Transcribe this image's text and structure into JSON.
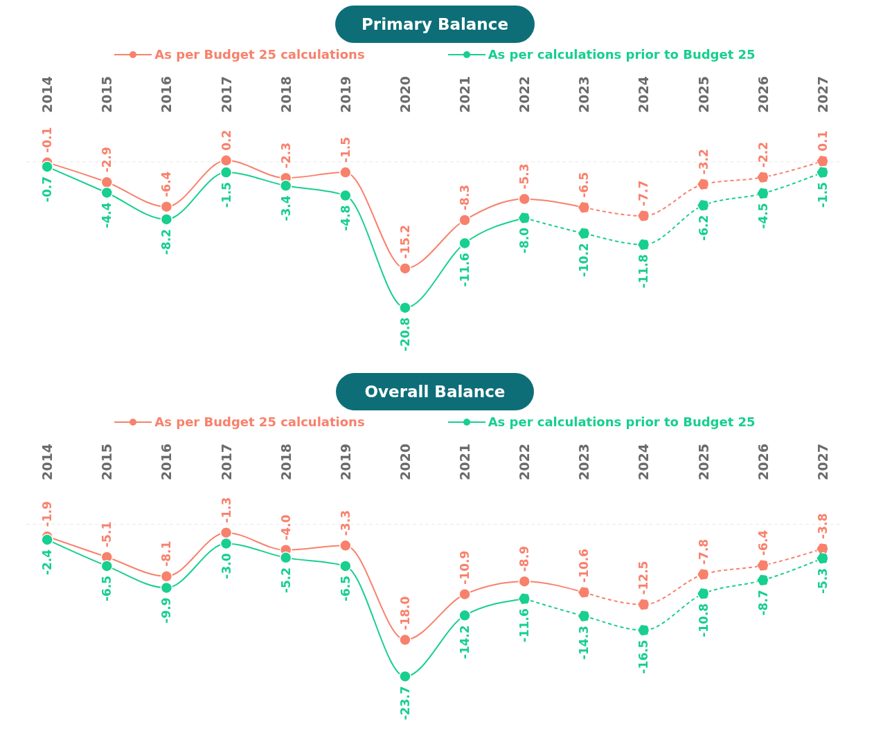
{
  "chart_data": [
    {
      "type": "line",
      "title": "Primary Balance",
      "categories": [
        "2014",
        "2015",
        "2016",
        "2017",
        "2018",
        "2019",
        "2020",
        "2021",
        "2022",
        "2023",
        "2024",
        "2025",
        "2026",
        "2027"
      ],
      "legend": "top",
      "tick_labels": "x",
      "marker": "circle",
      "series": [
        {
          "name": "As per Budget 25 calculations",
          "color": "#f8816c",
          "line_style": "solid",
          "values": [
            -0.1,
            -2.9,
            -6.4,
            0.2,
            -2.3,
            -1.5,
            -15.2,
            -8.3,
            -5.3,
            -6.5,
            null,
            null,
            null,
            null
          ],
          "value_labels": [
            "-0.1",
            "-2.9",
            "-6.4",
            "0.2",
            "-2.3",
            "-1.5",
            "-15.2",
            "-8.3",
            "-5.3",
            "-6.5",
            null,
            null,
            null,
            null
          ]
        },
        {
          "color": "#f8816c",
          "line_style": "dashed",
          "values": [
            null,
            null,
            null,
            null,
            null,
            null,
            null,
            null,
            null,
            -6.5,
            -7.7,
            -3.2,
            -2.2,
            0.1
          ],
          "value_labels": [
            null,
            null,
            null,
            null,
            null,
            null,
            null,
            null,
            null,
            null,
            "-7.7",
            "-3.2",
            "-2.2",
            "0.1"
          ]
        },
        {
          "name": "As per calculations prior to Budget 25",
          "color": "#17cf8e",
          "line_style": "solid",
          "values": [
            -0.7,
            -4.4,
            -8.2,
            -1.5,
            -3.4,
            -4.8,
            -20.8,
            -11.6,
            -8.0,
            null,
            null,
            null,
            null,
            null
          ],
          "value_labels": [
            "-0.7",
            "-4.4",
            "-8.2",
            "-1.5",
            "-3.4",
            "-4.8",
            "-20.8",
            "-11.6",
            "-8.0",
            null,
            null,
            null,
            null,
            null
          ]
        },
        {
          "color": "#17cf8e",
          "line_style": "dashed",
          "values": [
            null,
            null,
            null,
            null,
            null,
            null,
            null,
            null,
            -8.0,
            -10.2,
            -11.8,
            -6.2,
            -4.5,
            -1.5
          ],
          "value_labels": [
            null,
            null,
            null,
            null,
            null,
            null,
            null,
            null,
            null,
            "-10.2",
            "-11.8",
            "-6.2",
            "-4.5",
            "-1.5"
          ]
        }
      ],
      "ref_lines": [
        {
          "axis": "y",
          "value": 0,
          "color": "#e8e8e8",
          "line_style": "dashed"
        }
      ]
    },
    {
      "type": "line",
      "title": "Overall Balance",
      "categories": [
        "2014",
        "2015",
        "2016",
        "2017",
        "2018",
        "2019",
        "2020",
        "2021",
        "2022",
        "2023",
        "2024",
        "2025",
        "2026",
        "2027"
      ],
      "legend": "top",
      "tick_labels": "x",
      "marker": "circle",
      "series": [
        {
          "name": "As per Budget 25 calculations",
          "color": "#f8816c",
          "line_style": "solid",
          "values": [
            -1.9,
            -5.1,
            -8.1,
            -1.3,
            -4.0,
            -3.3,
            -18.0,
            -10.9,
            -8.9,
            -10.6,
            null,
            null,
            null,
            null
          ],
          "value_labels": [
            "-1.9",
            "-5.1",
            "-8.1",
            "-1.3",
            "-4.0",
            "-3.3",
            "-18.0",
            "-10.9",
            "-8.9",
            "-10.6",
            null,
            null,
            null,
            null
          ]
        },
        {
          "color": "#f8816c",
          "line_style": "dashed",
          "values": [
            null,
            null,
            null,
            null,
            null,
            null,
            null,
            null,
            null,
            -10.6,
            -12.5,
            -7.8,
            -6.4,
            -3.8
          ],
          "value_labels": [
            null,
            null,
            null,
            null,
            null,
            null,
            null,
            null,
            null,
            null,
            "-12.5",
            "-7.8",
            "-6.4",
            "-3.8"
          ]
        },
        {
          "name": "As per calculations prior to Budget 25",
          "color": "#17cf8e",
          "line_style": "solid",
          "values": [
            -2.4,
            -6.5,
            -9.9,
            -3.0,
            -5.2,
            -6.5,
            -23.7,
            -14.2,
            -11.6,
            null,
            null,
            null,
            null,
            null
          ],
          "value_labels": [
            "-2.4",
            "-6.5",
            "-9.9",
            "-3.0",
            "-5.2",
            "-6.5",
            "-23.7",
            "-14.2",
            "-11.6",
            null,
            null,
            null,
            null,
            null
          ]
        },
        {
          "color": "#17cf8e",
          "line_style": "dashed",
          "values": [
            null,
            null,
            null,
            null,
            null,
            null,
            null,
            null,
            -11.6,
            -14.3,
            -16.5,
            -10.8,
            -8.7,
            -5.3
          ],
          "value_labels": [
            null,
            null,
            null,
            null,
            null,
            null,
            null,
            null,
            null,
            "-14.3",
            "-16.5",
            "-10.8",
            "-8.7",
            "-5.3"
          ]
        }
      ],
      "ref_lines": [
        {
          "axis": "y",
          "value": 0,
          "color": "#e8e8e8",
          "line_style": "dashed"
        }
      ]
    }
  ]
}
